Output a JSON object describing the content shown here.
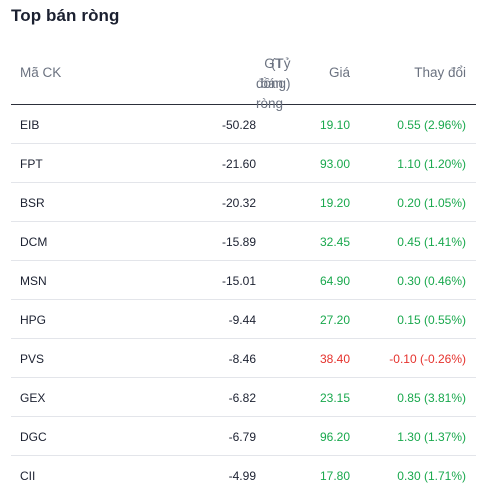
{
  "title": "Top bán ròng",
  "columns": {
    "code": "Mã CK",
    "value_line1": "GT bán ròng",
    "value_line2": "(Tỷ đồng)",
    "price": "Giá",
    "change": "Thay đổi"
  },
  "colors": {
    "up": "#19a84d",
    "down": "#e5322d"
  },
  "rows": [
    {
      "code": "EIB",
      "value": "-50.28",
      "price": "19.10",
      "change": "0.55 (2.96%)",
      "trend": "up"
    },
    {
      "code": "FPT",
      "value": "-21.60",
      "price": "93.00",
      "change": "1.10 (1.20%)",
      "trend": "up"
    },
    {
      "code": "BSR",
      "value": "-20.32",
      "price": "19.20",
      "change": "0.20 (1.05%)",
      "trend": "up"
    },
    {
      "code": "DCM",
      "value": "-15.89",
      "price": "32.45",
      "change": "0.45 (1.41%)",
      "trend": "up"
    },
    {
      "code": "MSN",
      "value": "-15.01",
      "price": "64.90",
      "change": "0.30 (0.46%)",
      "trend": "up"
    },
    {
      "code": "HPG",
      "value": "-9.44",
      "price": "27.20",
      "change": "0.15 (0.55%)",
      "trend": "up"
    },
    {
      "code": "PVS",
      "value": "-8.46",
      "price": "38.40",
      "change": "-0.10 (-0.26%)",
      "trend": "down"
    },
    {
      "code": "GEX",
      "value": "-6.82",
      "price": "23.15",
      "change": "0.85 (3.81%)",
      "trend": "up"
    },
    {
      "code": "DGC",
      "value": "-6.79",
      "price": "96.20",
      "change": "1.30 (1.37%)",
      "trend": "up"
    },
    {
      "code": "CII",
      "value": "-4.99",
      "price": "17.80",
      "change": "0.30 (1.71%)",
      "trend": "up"
    }
  ]
}
